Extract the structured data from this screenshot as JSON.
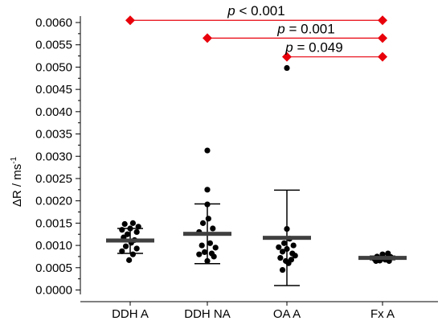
{
  "chart_data": {
    "type": "scatter",
    "ylabel": "ΔR / ms",
    "ylabel_superscript": "-1",
    "ylim": [
      0,
      0.0061
    ],
    "y_ticks": [
      "0.0000",
      "0.0005",
      "0.0010",
      "0.0015",
      "0.0020",
      "0.0025",
      "0.0030",
      "0.0035",
      "0.0040",
      "0.0045",
      "0.0050",
      "0.0055",
      "0.0060"
    ],
    "categories": [
      "DDH A",
      "DDH NA",
      "OA A",
      "Fx A"
    ],
    "groups": [
      {
        "name": "DDH A",
        "mean": 0.00111,
        "lower": 0.00082,
        "upper": 0.00138,
        "points": [
          [
            -0.1,
            0.00148
          ],
          [
            0.05,
            0.0015
          ],
          [
            0.15,
            0.00142
          ],
          [
            -0.15,
            0.00135
          ],
          [
            0.0,
            0.00138
          ],
          [
            0.12,
            0.0013
          ],
          [
            -0.05,
            0.00125
          ],
          [
            -0.12,
            0.00118
          ],
          [
            0.08,
            0.00112
          ],
          [
            0.02,
            0.00106
          ],
          [
            -0.08,
            0.00098
          ],
          [
            0.12,
            0.00093
          ],
          [
            -0.15,
            0.00087
          ],
          [
            0.05,
            0.0008
          ],
          [
            -0.02,
            0.00067
          ]
        ]
      },
      {
        "name": "DDH NA",
        "mean": 0.00126,
        "lower": 0.00059,
        "upper": 0.00193,
        "points": [
          [
            0.0,
            0.00313
          ],
          [
            0.0,
            0.00225
          ],
          [
            0.0,
            0.00192
          ],
          [
            0.02,
            0.0016
          ],
          [
            -0.08,
            0.0015
          ],
          [
            0.1,
            0.00138
          ],
          [
            -0.15,
            0.0013
          ],
          [
            0.05,
            0.00105
          ],
          [
            -0.1,
            0.001
          ],
          [
            0.15,
            0.00095
          ],
          [
            -0.05,
            0.00085
          ],
          [
            0.08,
            0.00082
          ],
          [
            -0.15,
            0.0008
          ],
          [
            0.12,
            0.00075
          ],
          [
            0.0,
            0.00065
          ]
        ]
      },
      {
        "name": "OA A",
        "mean": 0.00117,
        "lower": 0.0001,
        "upper": 0.00224,
        "points": [
          [
            0.0,
            0.00498
          ],
          [
            0.0,
            0.00137
          ],
          [
            0.05,
            0.00115
          ],
          [
            -0.05,
            0.00105
          ],
          [
            0.12,
            0.001
          ],
          [
            -0.15,
            0.00096
          ],
          [
            0.0,
            0.00092
          ],
          [
            -0.08,
            0.00086
          ],
          [
            0.1,
            0.00082
          ],
          [
            0.15,
            0.00077
          ],
          [
            -0.12,
            0.00072
          ],
          [
            0.08,
            0.00068
          ],
          [
            -0.02,
            0.00065
          ],
          [
            0.03,
            0.0006
          ],
          [
            -0.08,
            0.00045
          ]
        ]
      },
      {
        "name": "Fx A",
        "mean": 0.00072,
        "lower": 0.00068,
        "upper": 0.00076,
        "points": [
          [
            0.0,
            0.0008
          ],
          [
            0.1,
            0.00082
          ],
          [
            -0.1,
            0.00075
          ],
          [
            0.15,
            0.00074
          ],
          [
            -0.15,
            0.0007
          ],
          [
            0.05,
            0.00068
          ],
          [
            -0.05,
            0.00066
          ],
          [
            0.12,
            0.00065
          ],
          [
            -0.12,
            0.00065
          ]
        ]
      }
    ],
    "annotations": [
      {
        "from": 0,
        "to": 3,
        "y": 0.00605,
        "p_letter": "p",
        "text": " < 0.001"
      },
      {
        "from": 1,
        "to": 3,
        "y": 0.00565,
        "p_letter": "p",
        "text": " = 0.001"
      },
      {
        "from": 2,
        "to": 3,
        "y": 0.00523,
        "p_letter": "p",
        "text": " = 0.049"
      }
    ],
    "grid": false,
    "colors": {
      "points": "#000000",
      "mean_bar": "#404040",
      "annotation": "#e8000b",
      "axis": "#000000"
    }
  }
}
